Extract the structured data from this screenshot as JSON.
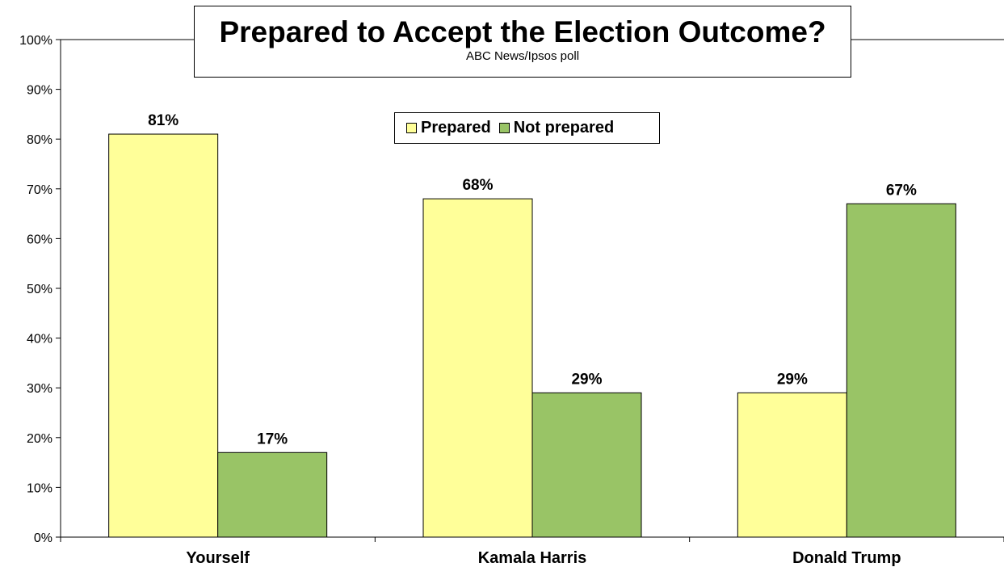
{
  "chart_data": {
    "type": "bar",
    "title": "Prepared to Accept the Election Outcome?",
    "subtitle": "ABC News/Ipsos poll",
    "categories": [
      "Yourself",
      "Kamala Harris",
      "Donald Trump"
    ],
    "series": [
      {
        "name": "Prepared",
        "values": [
          81,
          68,
          29
        ],
        "color": "#FFFF99",
        "labels": [
          "81%",
          "68%",
          "29%"
        ]
      },
      {
        "name": "Not prepared",
        "values": [
          17,
          29,
          67
        ],
        "color": "#99C466",
        "labels": [
          "17%",
          "29%",
          "67%"
        ]
      }
    ],
    "ylim": [
      0,
      100
    ],
    "yticks": [
      "0%",
      "10%",
      "20%",
      "30%",
      "40%",
      "50%",
      "60%",
      "70%",
      "80%",
      "90%",
      "100%"
    ],
    "grid": false,
    "legend_position": "top-center"
  }
}
